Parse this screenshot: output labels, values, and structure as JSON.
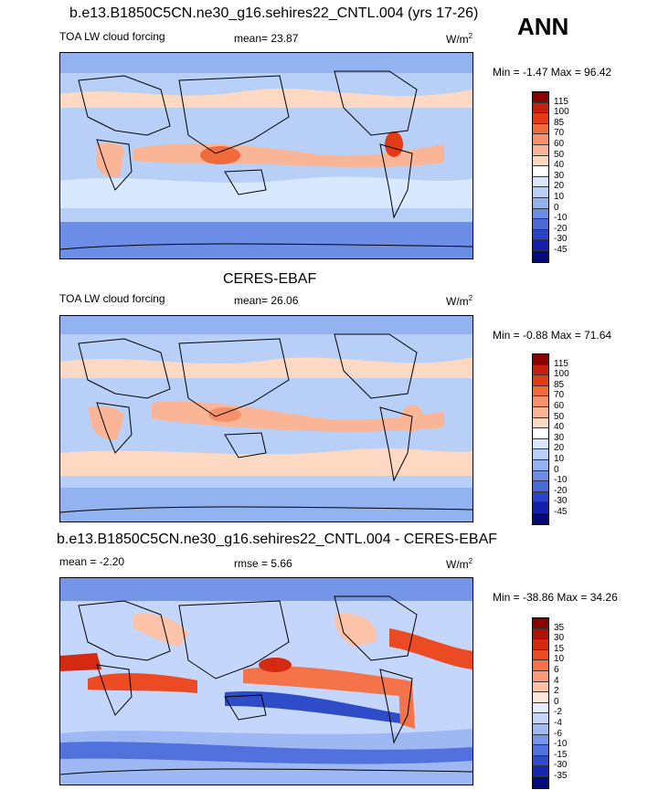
{
  "season": "ANN",
  "panels": [
    {
      "title": "b.e13.B1850C5CN.ne30_g16.sehires22_CNTL.004 (yrs 17-26)",
      "left_label": "TOA LW cloud forcing",
      "center_label": "mean=  23.87",
      "units": "W/m",
      "units_sup": "2",
      "minmax": "Min = -1.47 Max =  96.42",
      "levels": [
        "115",
        "100",
        "85",
        "70",
        "60",
        "50",
        "40",
        "30",
        "20",
        "10",
        "0",
        "-10",
        "-20",
        "-30",
        "-45"
      ],
      "colors": [
        "#8b0000",
        "#c81e0f",
        "#e23b16",
        "#f06a3c",
        "#f6916a",
        "#fab596",
        "#fdd9c4",
        "#ffffff",
        "#d8e8ff",
        "#b8d0f8",
        "#93b2f0",
        "#6d8ee6",
        "#4a6ad8",
        "#2a45c4",
        "#1020a8",
        "#030a7a"
      ]
    },
    {
      "title": "CERES-EBAF",
      "left_label": "TOA LW cloud forcing",
      "center_label": "mean=  26.06",
      "units": "W/m",
      "units_sup": "2",
      "minmax": "Min = -0.88 Max =  71.64",
      "levels": [
        "115",
        "100",
        "85",
        "70",
        "60",
        "50",
        "40",
        "30",
        "20",
        "10",
        "0",
        "-10",
        "-20",
        "-30",
        "-45"
      ],
      "colors": [
        "#8b0000",
        "#c81e0f",
        "#e23b16",
        "#f06a3c",
        "#f6916a",
        "#fab596",
        "#fdd9c4",
        "#ffffff",
        "#d8e8ff",
        "#b8d0f8",
        "#93b2f0",
        "#6d8ee6",
        "#4a6ad8",
        "#2a45c4",
        "#1020a8",
        "#030a7a"
      ]
    },
    {
      "title": "b.e13.B1850C5CN.ne30_g16.sehires22_CNTL.004 - CERES-EBAF",
      "left_label": "mean =  -2.20",
      "center_label": "rmse =   5.66",
      "units": "W/m",
      "units_sup": "2",
      "minmax": "Min = -38.86 Max =  34.26",
      "levels": [
        "35",
        "30",
        "15",
        "10",
        "6",
        "4",
        "2",
        "0",
        "-2",
        "-4",
        "-6",
        "-10",
        "-15",
        "-30",
        "-35"
      ],
      "colors": [
        "#8b0000",
        "#b0100a",
        "#d42a12",
        "#ec4a22",
        "#f57348",
        "#f99b78",
        "#fcc3a9",
        "#fee7dc",
        "#e3ecff",
        "#c4d6fb",
        "#9db8f3",
        "#7596e8",
        "#5171dc",
        "#2e4cc8",
        "#1428ad",
        "#030a7a"
      ]
    }
  ]
}
